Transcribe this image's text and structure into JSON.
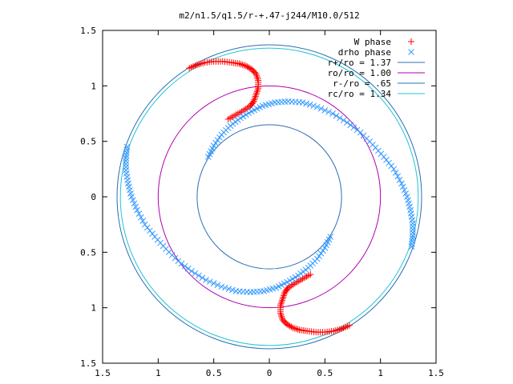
{
  "chart_data": {
    "type": "scatter",
    "title": "m2/n1.5/q1.5/r-+.47-j244/M10.0/512",
    "xlim": [
      -1.5,
      1.5
    ],
    "ylim": [
      -1.5,
      1.5
    ],
    "x_ticks": [
      -1.5,
      -1,
      -0.5,
      0,
      0.5,
      1,
      1.5
    ],
    "y_ticks": [
      -1.5,
      -1,
      -0.5,
      0,
      0.5,
      1,
      1.5
    ],
    "x_tick_labels": [
      "1.5",
      "1",
      "0.5",
      "0",
      "0.5",
      "1",
      "1.5"
    ],
    "y_tick_labels": [
      "1.5",
      "1",
      "0.5",
      "0",
      "0.5",
      "1",
      "1.5"
    ],
    "grid": false,
    "legend_position": "top-right",
    "series": [
      {
        "name": "W phase",
        "marker": "+",
        "color": "#ff0000",
        "points": [
          [
            -0.72,
            1.16
          ],
          [
            -0.65,
            1.19
          ],
          [
            -0.58,
            1.21
          ],
          [
            -0.5,
            1.22
          ],
          [
            -0.42,
            1.22
          ],
          [
            -0.34,
            1.21
          ],
          [
            -0.27,
            1.2
          ],
          [
            -0.21,
            1.18
          ],
          [
            -0.16,
            1.15
          ],
          [
            -0.12,
            1.11
          ],
          [
            -0.1,
            1.05
          ],
          [
            -0.1,
            0.98
          ],
          [
            -0.12,
            0.92
          ],
          [
            -0.14,
            0.86
          ],
          [
            -0.17,
            0.82
          ],
          [
            -0.23,
            0.78
          ],
          [
            -0.3,
            0.74
          ],
          [
            -0.37,
            0.7
          ],
          [
            0.72,
            -1.16
          ],
          [
            0.65,
            -1.19
          ],
          [
            0.58,
            -1.21
          ],
          [
            0.5,
            -1.22
          ],
          [
            0.42,
            -1.22
          ],
          [
            0.34,
            -1.21
          ],
          [
            0.27,
            -1.2
          ],
          [
            0.21,
            -1.18
          ],
          [
            0.16,
            -1.15
          ],
          [
            0.12,
            -1.11
          ],
          [
            0.1,
            -1.05
          ],
          [
            0.1,
            -0.98
          ],
          [
            0.12,
            -0.92
          ],
          [
            0.14,
            -0.86
          ],
          [
            0.17,
            -0.82
          ],
          [
            0.23,
            -0.78
          ],
          [
            0.3,
            -0.74
          ],
          [
            0.37,
            -0.7
          ]
        ]
      },
      {
        "name": "drho phase",
        "marker": "x",
        "color": "#3399ff",
        "points": [
          [
            -0.55,
            0.36
          ],
          [
            -0.5,
            0.46
          ],
          [
            -0.43,
            0.56
          ],
          [
            -0.35,
            0.64
          ],
          [
            -0.26,
            0.71
          ],
          [
            -0.16,
            0.77
          ],
          [
            -0.06,
            0.82
          ],
          [
            0.05,
            0.85
          ],
          [
            0.17,
            0.86
          ],
          [
            0.3,
            0.85
          ],
          [
            0.43,
            0.81
          ],
          [
            0.57,
            0.75
          ],
          [
            0.7,
            0.67
          ],
          [
            0.82,
            0.58
          ],
          [
            0.93,
            0.47
          ],
          [
            1.03,
            0.36
          ],
          [
            1.12,
            0.25
          ],
          [
            1.19,
            0.12
          ],
          [
            1.24,
            0.0
          ],
          [
            1.27,
            -0.12
          ],
          [
            1.29,
            -0.24
          ],
          [
            1.29,
            -0.35
          ],
          [
            1.28,
            -0.45
          ],
          [
            0.55,
            -0.36
          ],
          [
            0.5,
            -0.46
          ],
          [
            0.43,
            -0.56
          ],
          [
            0.35,
            -0.64
          ],
          [
            0.26,
            -0.71
          ],
          [
            0.16,
            -0.77
          ],
          [
            0.06,
            -0.82
          ],
          [
            -0.05,
            -0.85
          ],
          [
            -0.17,
            -0.86
          ],
          [
            -0.3,
            -0.85
          ],
          [
            -0.43,
            -0.81
          ],
          [
            -0.57,
            -0.75
          ],
          [
            -0.7,
            -0.67
          ],
          [
            -0.82,
            -0.58
          ],
          [
            -0.93,
            -0.47
          ],
          [
            -1.03,
            -0.36
          ],
          [
            -1.12,
            -0.25
          ],
          [
            -1.19,
            -0.12
          ],
          [
            -1.24,
            0.0
          ],
          [
            -1.27,
            0.12
          ],
          [
            -1.29,
            0.24
          ],
          [
            -1.29,
            0.35
          ],
          [
            -1.28,
            0.45
          ]
        ]
      },
      {
        "name": "r+/ro = 1.37",
        "type": "circle",
        "radius": 1.37,
        "color": "#2a6fb4"
      },
      {
        "name": "ro/ro = 1.00",
        "type": "circle",
        "radius": 1.0,
        "color": "#b000b0"
      },
      {
        "name": "r-/ro = .65",
        "type": "circle",
        "radius": 0.65,
        "color": "#2a6fb4"
      },
      {
        "name": "rc/ro = 1.34",
        "type": "circle",
        "radius": 1.34,
        "color": "#22c4d0"
      }
    ]
  }
}
